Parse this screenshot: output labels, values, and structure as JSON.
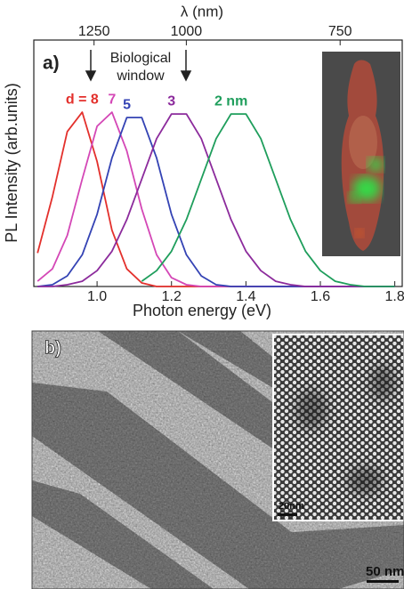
{
  "chart_data": {
    "type": "line",
    "xlabel": "Photon energy (eV)",
    "ylabel": "PL Intensity (arb.units)",
    "x2label": "λ (nm)",
    "annotations": [
      "a)",
      "Biological",
      "window"
    ],
    "xlim": [
      0.83,
      1.82
    ],
    "ylim": [
      0,
      1.4
    ],
    "xticks": [
      {
        "value": 1,
        "label": "1.0"
      },
      1.2,
      1.4,
      1.6,
      1.8
    ],
    "x2ticks": [
      1250,
      1000,
      750
    ],
    "x": [
      0.84,
      0.88,
      0.92,
      0.96,
      1.0,
      1.04,
      1.08,
      1.12,
      1.16,
      1.2,
      1.24,
      1.28,
      1.32,
      1.36,
      1.4,
      1.44,
      1.48,
      1.52,
      1.56,
      1.6,
      1.64,
      1.68,
      1.72,
      1.76,
      1.8
    ],
    "series": [
      {
        "name": "d = 8",
        "color": "#e3302c",
        "values": [
          0.19,
          0.51,
          0.88,
          0.99,
          0.71,
          0.32,
          0.1,
          0.02,
          0,
          0,
          0,
          0,
          0,
          0,
          0,
          0,
          0,
          0,
          0,
          0,
          0,
          0,
          0,
          0,
          0
        ]
      },
      {
        "name": "7",
        "color": "#d447b6",
        "values": [
          0.03,
          0.1,
          0.29,
          0.61,
          0.91,
          0.99,
          0.77,
          0.44,
          0.18,
          0.05,
          0.01,
          0,
          0,
          0,
          0,
          0,
          0,
          0,
          0,
          0,
          0,
          0,
          0,
          0,
          0
        ]
      },
      {
        "name": "5",
        "color": "#3443b4",
        "values": [
          0,
          0.01,
          0.06,
          0.18,
          0.41,
          0.73,
          0.96,
          0.96,
          0.73,
          0.41,
          0.18,
          0.06,
          0.01,
          0,
          0,
          0,
          0,
          0,
          0,
          0,
          0,
          0,
          0,
          0,
          0
        ]
      },
      {
        "name": "3",
        "color": "#8c2b9c",
        "values": [
          0,
          0,
          0.01,
          0.03,
          0.09,
          0.2,
          0.38,
          0.61,
          0.84,
          0.98,
          0.98,
          0.84,
          0.61,
          0.38,
          0.2,
          0.09,
          0.03,
          0.01,
          0,
          0,
          0,
          0,
          0,
          0,
          0
        ]
      },
      {
        "name": "2 nm",
        "color": "#1f9e5c",
        "values": [
          null,
          null,
          null,
          null,
          null,
          null,
          null,
          0.03,
          0.09,
          0.2,
          0.38,
          0.61,
          0.84,
          0.98,
          0.98,
          0.84,
          0.61,
          0.38,
          0.2,
          0.09,
          0.03,
          0.01,
          0,
          0,
          0
        ]
      }
    ]
  },
  "panel_b": {
    "label": "b)",
    "inset_scale": "20nm",
    "scale": "50 nm"
  }
}
